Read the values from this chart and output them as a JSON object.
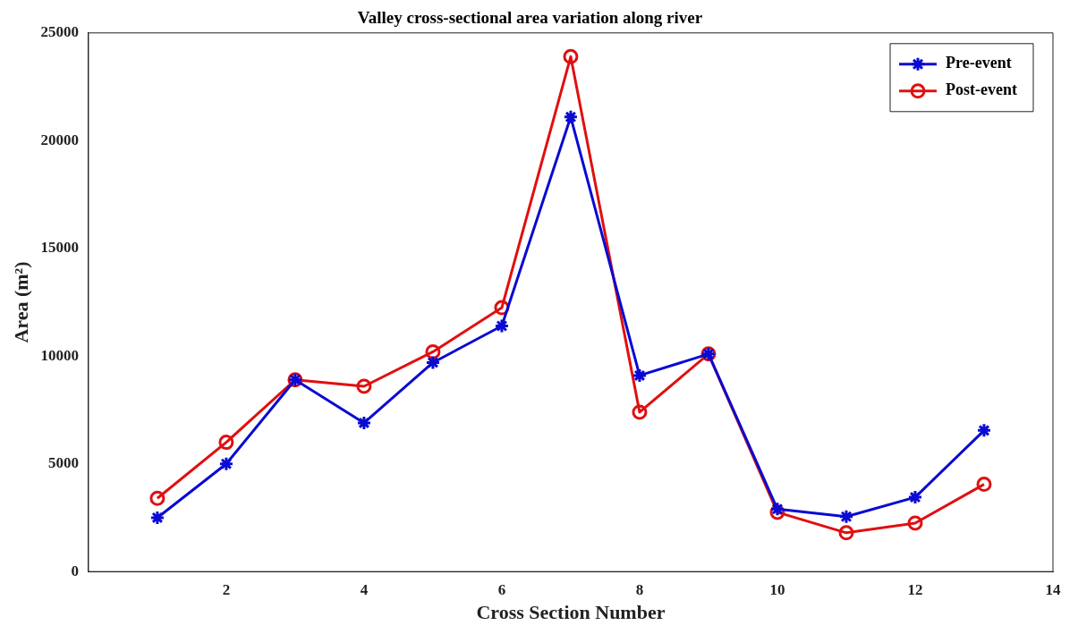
{
  "chart_data": {
    "type": "line",
    "title": "Valley cross-sectional area variation along river",
    "xlabel": "Cross Section Number",
    "ylabel": "Area (m²)",
    "x": [
      1,
      2,
      3,
      4,
      5,
      6,
      7,
      8,
      9,
      10,
      11,
      12,
      13
    ],
    "series": [
      {
        "name": "Pre-event",
        "color": "#0a0ad2",
        "marker": "cross",
        "values": [
          2500,
          5000,
          8900,
          6900,
          9700,
          11400,
          21100,
          9100,
          10100,
          2900,
          2550,
          3450,
          6550
        ]
      },
      {
        "name": "Post-event",
        "color": "#e01010",
        "marker": "circle",
        "values": [
          3400,
          6000,
          8900,
          8600,
          10200,
          12250,
          23900,
          7400,
          10100,
          2750,
          1800,
          2250,
          4050
        ]
      }
    ],
    "xlim": [
      0,
      14
    ],
    "xticks": [
      2,
      4,
      6,
      8,
      10,
      12,
      14
    ],
    "ylim": [
      0,
      25000
    ],
    "yticks": [
      0,
      5000,
      10000,
      15000,
      20000,
      25000
    ],
    "grid": false,
    "legend": "top right",
    "line_style": "solid"
  }
}
